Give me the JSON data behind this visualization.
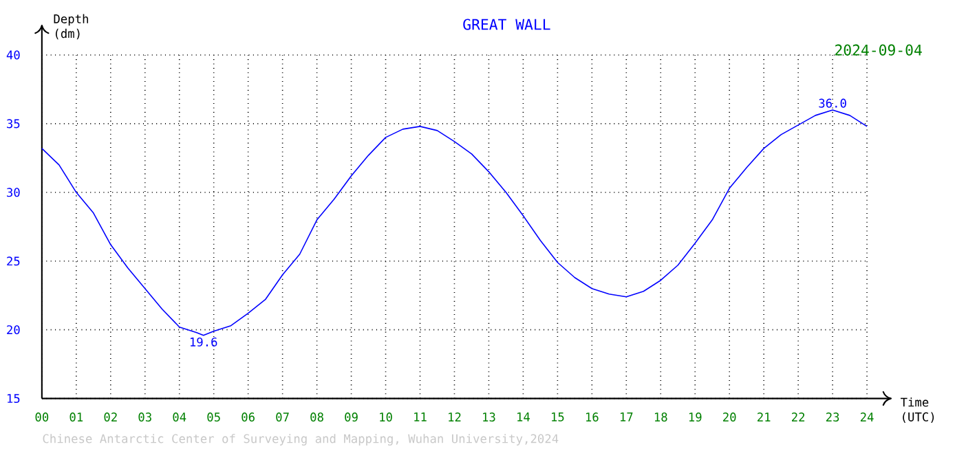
{
  "chart_data": {
    "type": "line",
    "title": "GREAT WALL",
    "subtitle": "2024-09-04",
    "xlabel": "Time (UTC)",
    "ylabel": "Depth (dm)",
    "x": [
      0,
      0.5,
      1,
      1.5,
      2,
      2.5,
      3,
      3.5,
      4,
      4.5,
      4.7,
      5,
      5.5,
      6,
      6.5,
      7,
      7.5,
      8,
      8.5,
      9,
      9.5,
      10,
      10.5,
      11,
      11.5,
      12,
      12.5,
      13,
      13.5,
      14,
      14.5,
      15,
      15.5,
      16,
      16.5,
      17,
      17.5,
      18,
      18.5,
      19,
      19.5,
      20,
      20.5,
      21,
      21.5,
      22,
      22.5,
      23,
      23.5,
      24
    ],
    "series": [
      {
        "color": "#0000ff",
        "values": [
          33.2,
          32.0,
          30.0,
          28.5,
          26.2,
          24.5,
          23.0,
          21.5,
          20.2,
          19.8,
          19.6,
          19.9,
          20.3,
          21.2,
          22.2,
          24.0,
          25.5,
          28.0,
          29.5,
          31.2,
          32.7,
          34.0,
          34.6,
          34.8,
          34.5,
          33.7,
          32.8,
          31.5,
          30.0,
          28.3,
          26.5,
          24.9,
          23.8,
          23.0,
          22.6,
          22.4,
          22.8,
          23.6,
          24.7,
          26.3,
          28.0,
          30.3,
          31.8,
          33.2,
          34.2,
          34.9,
          35.6,
          36.0,
          35.6,
          34.8
        ]
      }
    ],
    "xlim": [
      0,
      24
    ],
    "ylim": [
      15,
      40
    ],
    "xticks": [
      {
        "value": 0,
        "label": "00"
      },
      {
        "value": 1,
        "label": "01"
      },
      {
        "value": 2,
        "label": "02"
      },
      {
        "value": 3,
        "label": "03"
      },
      {
        "value": 4,
        "label": "04"
      },
      {
        "value": 5,
        "label": "05"
      },
      {
        "value": 6,
        "label": "06"
      },
      {
        "value": 7,
        "label": "07"
      },
      {
        "value": 8,
        "label": "08"
      },
      {
        "value": 9,
        "label": "09"
      },
      {
        "value": 10,
        "label": "10"
      },
      {
        "value": 11,
        "label": "11"
      },
      {
        "value": 12,
        "label": "12"
      },
      {
        "value": 13,
        "label": "13"
      },
      {
        "value": 14,
        "label": "14"
      },
      {
        "value": 15,
        "label": "15"
      },
      {
        "value": 16,
        "label": "16"
      },
      {
        "value": 17,
        "label": "17"
      },
      {
        "value": 18,
        "label": "18"
      },
      {
        "value": 19,
        "label": "19"
      },
      {
        "value": 20,
        "label": "20"
      },
      {
        "value": 21,
        "label": "21"
      },
      {
        "value": 22,
        "label": "22"
      },
      {
        "value": 23,
        "label": "23"
      },
      {
        "value": 24,
        "label": "24"
      }
    ],
    "yticks": [
      15,
      20,
      25,
      30,
      35,
      40
    ],
    "grid": true,
    "legend": false,
    "marker": "none",
    "line_style": "solid",
    "annotations": [
      {
        "text": "36.0",
        "x": 23,
        "y": 36.0
      },
      {
        "text": "19.6",
        "x": 4.7,
        "y": 19.6
      },
      "Chinese Antarctic Center of Surveying and Mapping, Wuhan University,2024"
    ]
  }
}
